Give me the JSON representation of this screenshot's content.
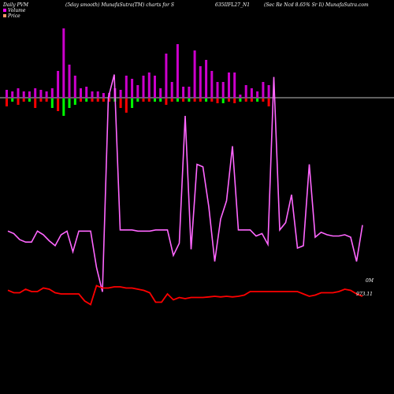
{
  "header": {
    "left": "Daily PVM",
    "smooth": "(5day smooth) MunafaSutra(TM) charts for S",
    "symbol": "635IIFL27_N1",
    "right": "(Sec Re   Ncd 8.65% Sr Ii) MunafaSutra.com"
  },
  "legend": [
    {
      "label": "Volume",
      "color": "#ff00ff"
    },
    {
      "label": "Price",
      "color": "#ff9966"
    }
  ],
  "colors": {
    "background": "#000000",
    "volume_bar": "#cc00cc",
    "volume_line": "#ff66ff",
    "price_line": "#ff0000",
    "up_bar": "#00ff00",
    "down_bar": "#ff0000",
    "baseline": "#c0c0c0"
  },
  "chart_data": {
    "type": "line",
    "x": [
      1,
      2,
      3,
      4,
      5,
      6,
      7,
      8,
      9,
      10,
      11,
      12,
      13,
      14,
      15,
      16,
      17,
      18,
      19,
      20,
      21,
      22,
      23,
      24,
      25,
      26,
      27,
      28,
      29,
      30,
      31,
      32,
      33,
      34,
      35,
      36,
      37,
      38,
      39,
      40,
      41,
      42,
      43,
      44,
      45,
      46,
      47,
      48,
      49,
      50,
      51,
      52,
      53,
      54,
      55,
      56,
      57,
      58,
      59,
      60,
      61
    ],
    "series": [
      {
        "name": "Volume",
        "values": [
          0.55,
          0.53,
          0.48,
          0.46,
          0.46,
          0.55,
          0.52,
          0.47,
          0.43,
          0.52,
          0.55,
          0.38,
          0.55,
          0.55,
          0.55,
          0.25,
          0.05,
          1.65,
          1.84,
          0.56,
          0.56,
          0.56,
          0.55,
          0.55,
          0.55,
          0.56,
          0.56,
          0.56,
          0.35,
          0.45,
          1.5,
          0.4,
          1.1,
          1.08,
          0.75,
          0.3,
          0.65,
          0.8,
          1.25,
          0.56,
          0.56,
          0.56,
          0.51,
          0.53,
          0.44,
          1.82,
          0.56,
          0.62,
          0.85,
          0.41,
          0.43,
          1.1,
          0.5,
          0.54,
          0.52,
          0.51,
          0.51,
          0.52,
          0.5,
          0.3,
          0.6
        ]
      },
      {
        "name": "Price",
        "values": [
          973.11,
          972.9,
          972.9,
          973.2,
          973.0,
          973.0,
          973.3,
          973.2,
          972.9,
          972.8,
          972.8,
          972.8,
          972.8,
          972.2,
          971.9,
          973.5,
          973.3,
          973.3,
          973.4,
          973.4,
          973.3,
          973.3,
          973.2,
          973.1,
          972.9,
          972.1,
          972.1,
          972.8,
          972.3,
          972.5,
          972.4,
          972.5,
          972.5,
          972.5,
          972.55,
          972.6,
          972.55,
          972.6,
          972.55,
          972.6,
          972.7,
          973.0,
          973.0,
          973.0,
          973.0,
          973.0,
          973.0,
          973.0,
          973.0,
          973.0,
          972.8,
          972.6,
          972.7,
          972.9,
          972.9,
          972.9,
          973.0,
          973.2,
          973.1,
          972.8,
          972.6
        ]
      }
    ],
    "volume_bars": [
      {
        "up": 0.3,
        "down": 0.3
      },
      {
        "up": 0.4,
        "down": 0.5
      },
      {
        "up": 0.2,
        "down": 0.5
      },
      {
        "up": 0.3,
        "down": 0.3
      },
      {
        "up": 0.2,
        "down": 0.5
      },
      {
        "up": 0.5,
        "down": 0.5
      },
      {
        "up": 0.3,
        "down": 0.5
      },
      {
        "up": 0.3,
        "down": 0.3
      },
      {
        "up": 0.3,
        "down": 0.3
      },
      {
        "up": 0.6,
        "down": 0.6
      },
      {
        "up": 0.4,
        "down": 0.4
      },
      {
        "up": 0.4,
        "down": 0.4
      },
      {
        "up": 0.3,
        "down": 0.5
      },
      {
        "up": 0.3,
        "down": 0.3
      },
      {
        "up": 0.4,
        "down": 0.4
      },
      {
        "up": 0.2,
        "down": 0.2
      },
      {
        "up": 0.2,
        "down": 0.2
      },
      {
        "up": 0.3,
        "down": 0.3
      },
      {
        "up": 0.3,
        "down": 0.3
      },
      {
        "up": 0.4,
        "down": 0.4
      }
    ],
    "bars_up": [
      0.25,
      0.2,
      0.3,
      0.2,
      0.2,
      0.3,
      0.25,
      0.2,
      0.3,
      0.85,
      2.2,
      1.05,
      0.7,
      0.3,
      0.35,
      0.2,
      0.2,
      0.15,
      0.15,
      0.3,
      0.25,
      0.7,
      0.6,
      0.4,
      0.7,
      0.8,
      0.7,
      0.3,
      1.4,
      0.5,
      1.7,
      0.35,
      0.35,
      1.5,
      1.0,
      1.2,
      0.85,
      0.5,
      0.5,
      0.8,
      0.8,
      0.1,
      0.4,
      0.3,
      0.2,
      0.5,
      0.4
    ],
    "bars_dir": [
      "d",
      "u",
      "d",
      "d",
      "u",
      "d",
      "d",
      "d",
      "u",
      "d",
      "u",
      "u",
      "u",
      "d",
      "u",
      "d",
      "d",
      "d",
      "d",
      "u",
      "d",
      "d",
      "u",
      "u",
      "d",
      "d",
      "u",
      "u",
      "d",
      "d",
      "u",
      "d",
      "u",
      "d",
      "d",
      "u",
      "d",
      "d",
      "u",
      "d",
      "d",
      "u",
      "d",
      "d",
      "u",
      "d",
      "d"
    ],
    "bars_down": [
      0.25,
      0.1,
      0.2,
      0.1,
      0.1,
      0.3,
      0.1,
      0.1,
      0.3,
      0.4,
      0.55,
      0.3,
      0.2,
      0.1,
      0.1,
      0.1,
      0.1,
      0.1,
      0.1,
      0.1,
      0.3,
      0.45,
      0.3,
      0.1,
      0.1,
      0.1,
      0.1,
      0.1,
      0.2,
      0.1,
      0.1,
      0.1,
      0.1,
      0.1,
      0.1,
      0.1,
      0.1,
      0.15,
      0.15,
      0.1,
      0.15,
      0.1,
      0.1,
      0.1,
      0.1,
      0.1,
      0.25
    ],
    "labels": {
      "volume_right": "0M",
      "price_right": "973.11"
    },
    "grid": false
  }
}
